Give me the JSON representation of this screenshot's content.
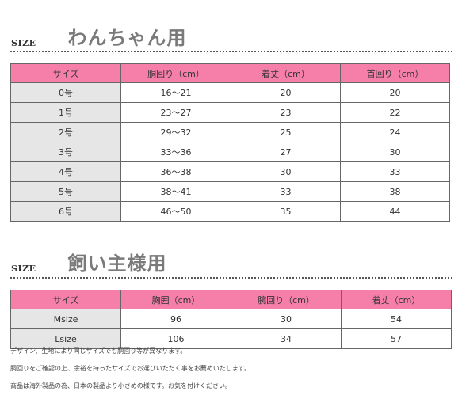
{
  "dog_section": {
    "size_label": "SIZE",
    "title": "わんちゃん用",
    "headers": [
      "サイズ",
      "胴回り（cm）",
      "着丈（cm）",
      "首回り（cm）"
    ],
    "rows": [
      [
        "0号",
        "16～21",
        "20",
        "20"
      ],
      [
        "1号",
        "23～27",
        "23",
        "22"
      ],
      [
        "2号",
        "29～32",
        "25",
        "24"
      ],
      [
        "3号",
        "33～36",
        "27",
        "30"
      ],
      [
        "4号",
        "36～38",
        "30",
        "33"
      ],
      [
        "5号",
        "38～41",
        "33",
        "38"
      ],
      [
        "6号",
        "46～50",
        "35",
        "44"
      ]
    ]
  },
  "owner_section": {
    "size_label": "SIZE",
    "title": "飼い主様用",
    "headers": [
      "サイズ",
      "胸囲（cm）",
      "腕回り（cm）",
      "着丈（cm）"
    ],
    "rows": [
      [
        "Msize",
        "96",
        "30",
        "54"
      ],
      [
        "Lsize",
        "106",
        "34",
        "57"
      ]
    ]
  },
  "notes": [
    "デザイン、生地により同じサイズでも胴回り等が異なります。",
    "胴回りをご確認の上、余裕を持ったサイズでお選びいただく事をお薦めいたします。",
    "商品は海外製品の為、日本の製品より小さめの様です。お気を付けください。"
  ]
}
